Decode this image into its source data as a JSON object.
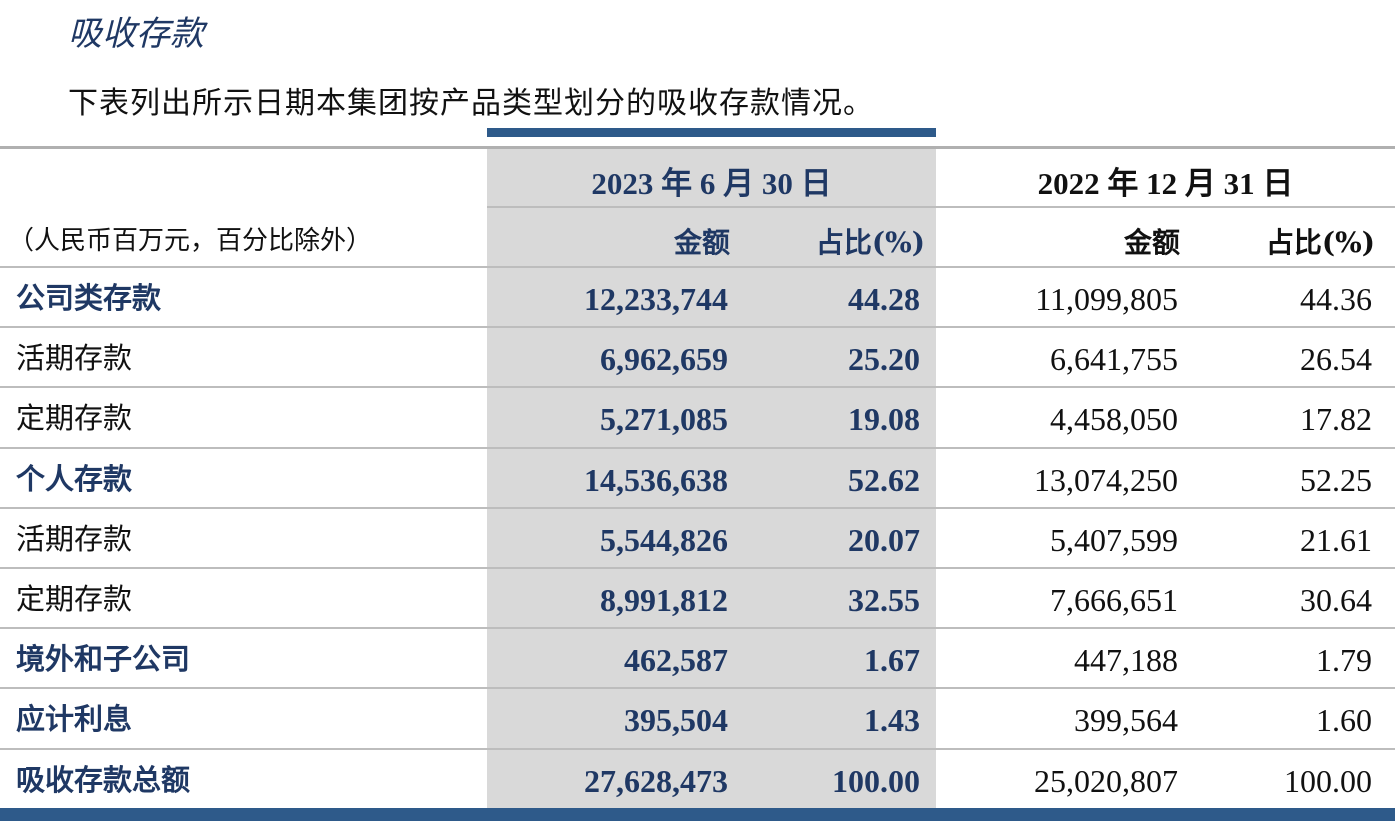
{
  "section_title": "吸收存款",
  "intro_text": "下表列出所示日期本集团按产品类型划分的吸收存款情况。",
  "header": {
    "period_current": "2023 年 6 月 30 日",
    "period_prior": "2022 年 12 月 31 日",
    "unit_note": "（人民币百万元，百分比除外）",
    "amount_label": "金额",
    "share_label": "占比(%)"
  },
  "rows": [
    {
      "label": "公司类存款",
      "kind": "category",
      "cur_amount": "12,233,744",
      "cur_share": "44.28",
      "prev_amount": "11,099,805",
      "prev_share": "44.36"
    },
    {
      "label": "活期存款",
      "kind": "sub",
      "cur_amount": "6,962,659",
      "cur_share": "25.20",
      "prev_amount": "6,641,755",
      "prev_share": "26.54"
    },
    {
      "label": "定期存款",
      "kind": "sub",
      "cur_amount": "5,271,085",
      "cur_share": "19.08",
      "prev_amount": "4,458,050",
      "prev_share": "17.82"
    },
    {
      "label": "个人存款",
      "kind": "category",
      "cur_amount": "14,536,638",
      "cur_share": "52.62",
      "prev_amount": "13,074,250",
      "prev_share": "52.25"
    },
    {
      "label": "活期存款",
      "kind": "sub",
      "cur_amount": "5,544,826",
      "cur_share": "20.07",
      "prev_amount": "5,407,599",
      "prev_share": "21.61"
    },
    {
      "label": "定期存款",
      "kind": "sub",
      "cur_amount": "8,991,812",
      "cur_share": "32.55",
      "prev_amount": "7,666,651",
      "prev_share": "30.64"
    },
    {
      "label": "境外和子公司",
      "kind": "category",
      "cur_amount": "462,587",
      "cur_share": "1.67",
      "prev_amount": "447,188",
      "prev_share": "1.79"
    },
    {
      "label": "应计利息",
      "kind": "category",
      "cur_amount": "395,504",
      "cur_share": "1.43",
      "prev_amount": "399,564",
      "prev_share": "1.60"
    },
    {
      "label": "吸收存款总额",
      "kind": "category",
      "cur_amount": "27,628,473",
      "cur_share": "100.00",
      "prev_amount": "25,020,807",
      "prev_share": "100.00"
    }
  ],
  "colors": {
    "accent": "#2e5a8a",
    "highlight_text": "#1f3864",
    "shaded_column": "#d9d9d9",
    "rule": "#bdbdbd"
  }
}
